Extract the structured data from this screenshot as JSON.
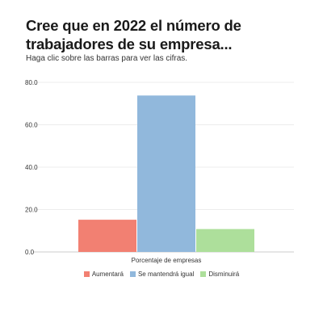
{
  "header": {
    "title": "Cree que en 2022 el número de trabajadores de su empresa...",
    "subtitle": "Haga clic sobre las barras para ver las cifras."
  },
  "chart_data": {
    "type": "bar",
    "title": "Cree que en 2022 el número de trabajadores de su empresa...",
    "xlabel": "Porcentaje de empresas",
    "ylabel": "",
    "categories": [
      "Porcentaje de empresas"
    ],
    "y_tick_labels": [
      "0.0",
      "20.0",
      "40.0",
      "60.0",
      "80.0"
    ],
    "y_ticks": [
      0,
      20,
      40,
      60,
      80
    ],
    "ylim": [
      0,
      80
    ],
    "grid": true,
    "legend_position": "bottom",
    "series": [
      {
        "name": "Aumentará",
        "color": "#f28072",
        "values": [
          15.2
        ]
      },
      {
        "name": "Se mantendrá igual",
        "color": "#91b8dc",
        "values": [
          73.8
        ]
      },
      {
        "name": "Disminuirá",
        "color": "#addf9b",
        "values": [
          10.8
        ]
      }
    ]
  }
}
